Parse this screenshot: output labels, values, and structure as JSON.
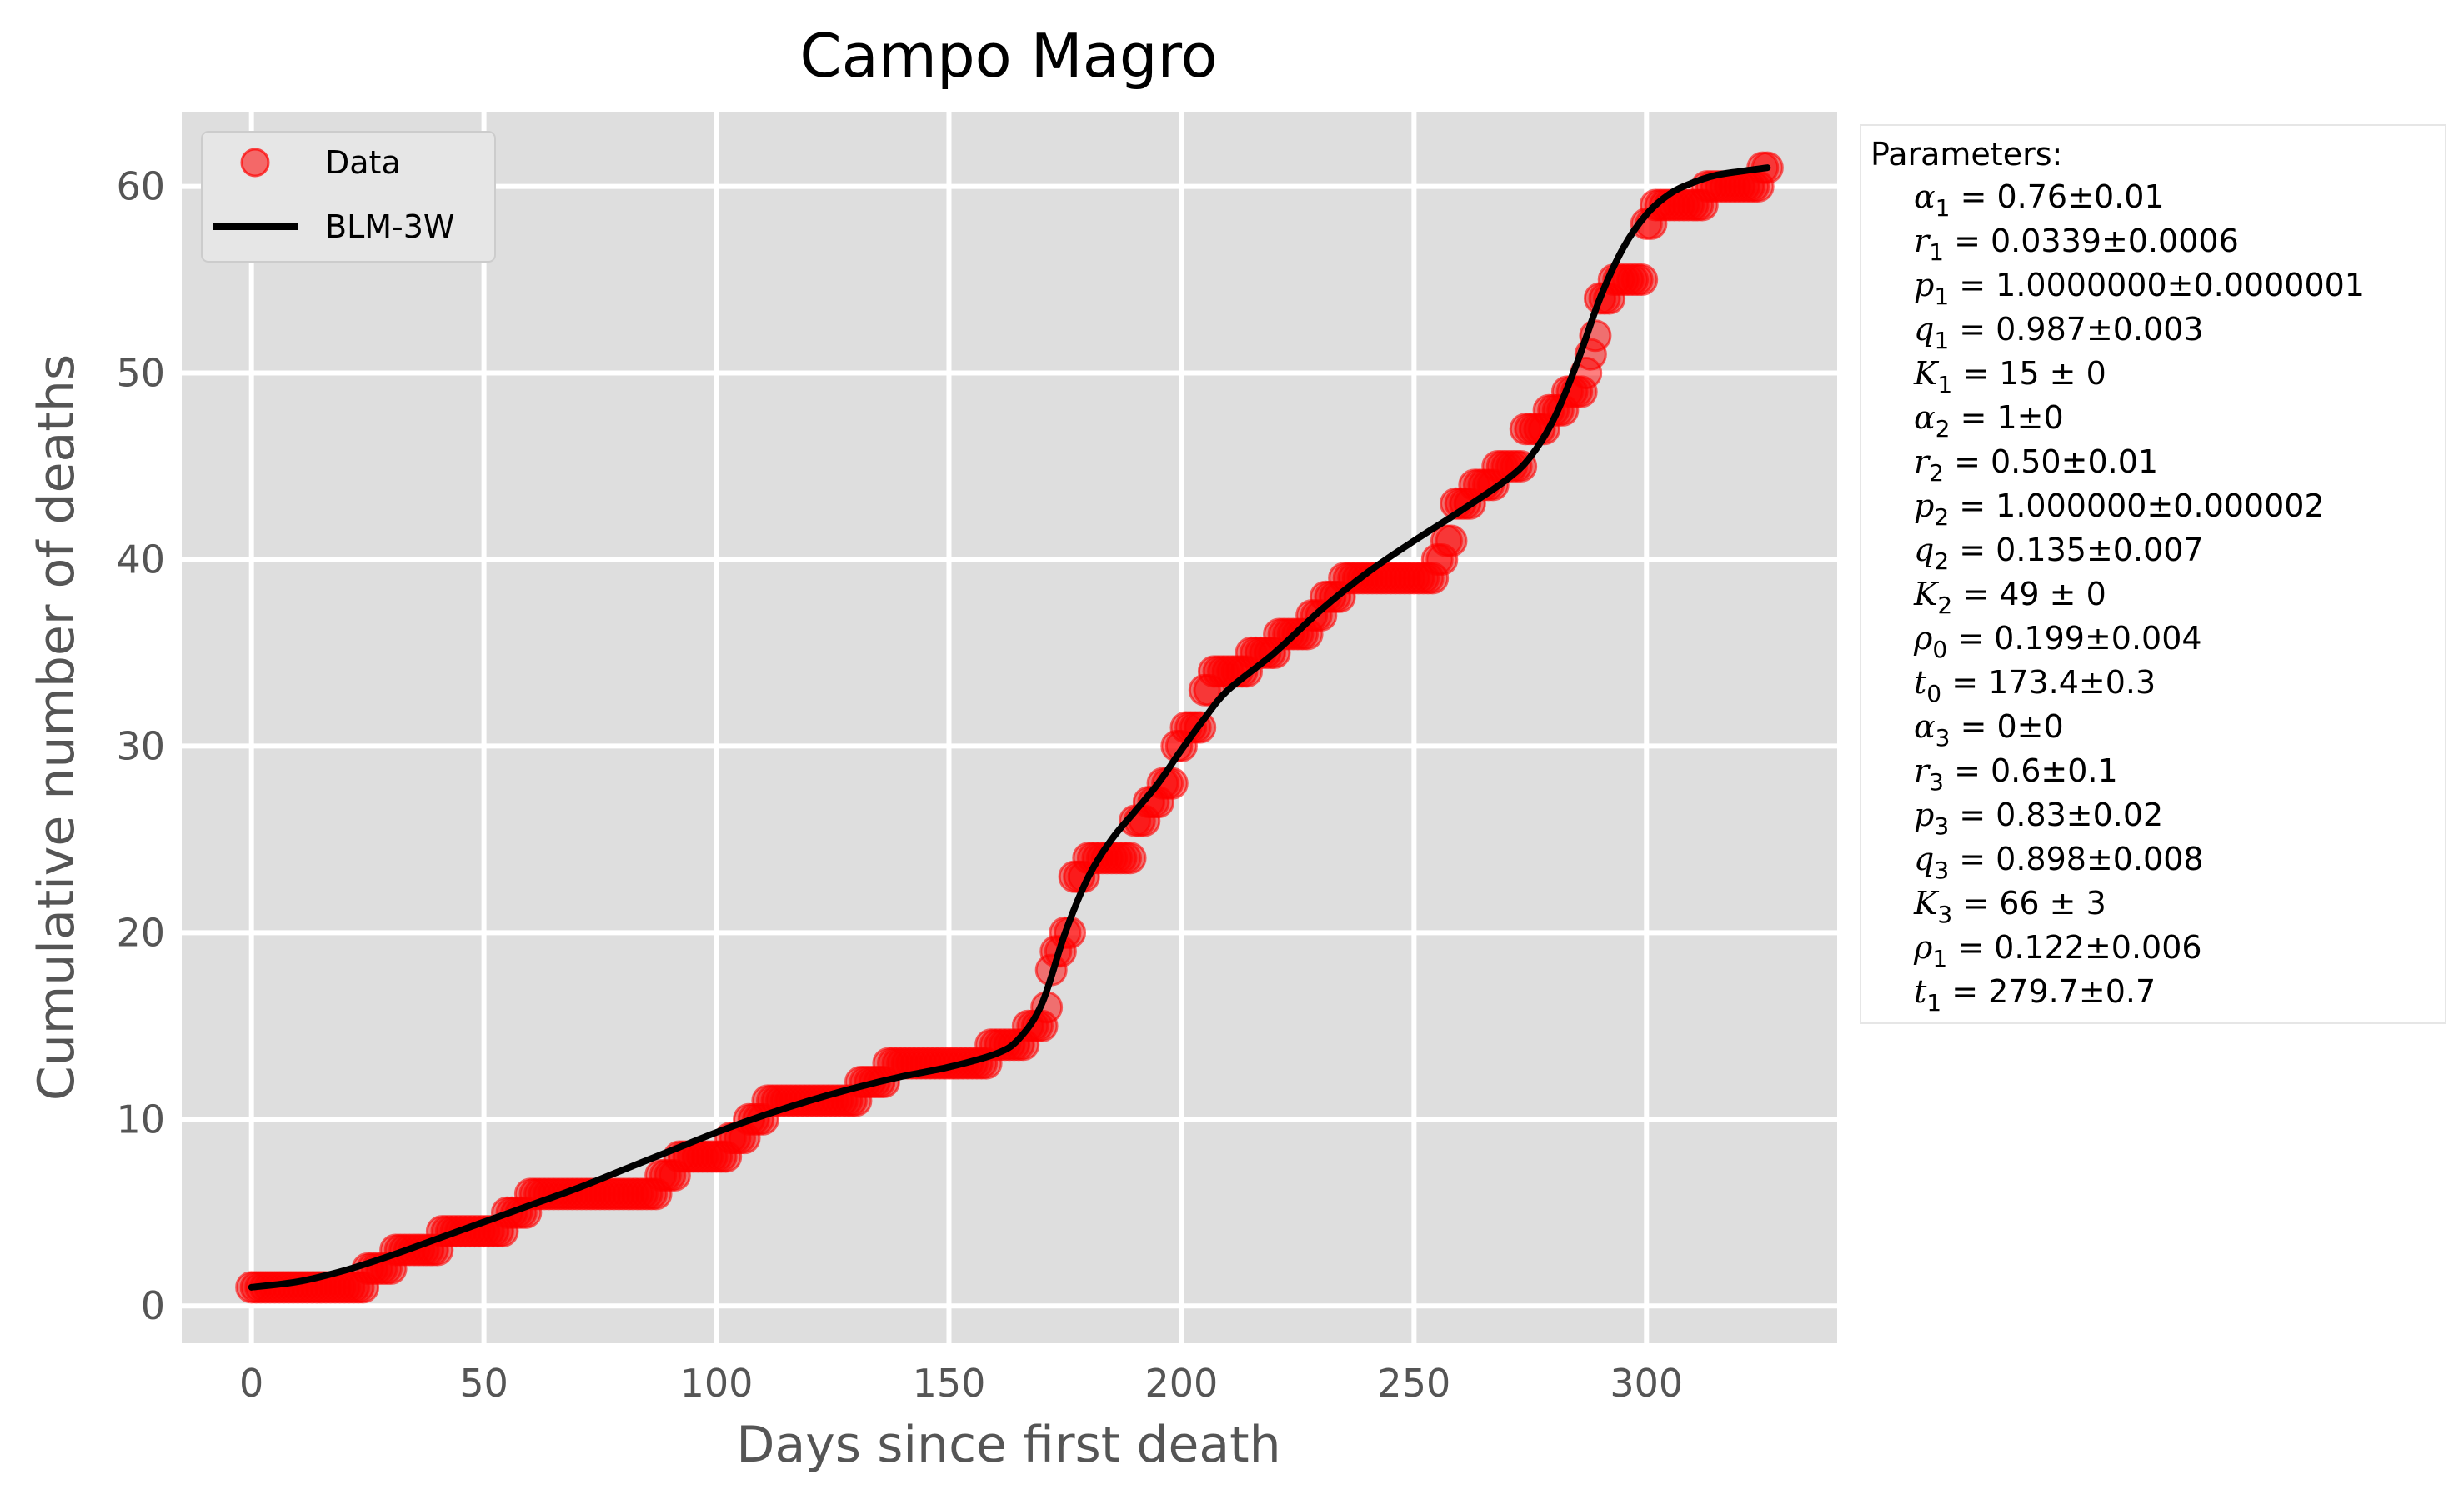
{
  "chart_data": {
    "type": "scatter",
    "title": "Campo Magro",
    "xlabel": "Days since first death",
    "ylabel": "Cumulative number of deaths",
    "xlim": [
      -15,
      341
    ],
    "ylim": [
      -2,
      64
    ],
    "xticks": [
      0,
      50,
      100,
      150,
      200,
      250,
      300
    ],
    "yticks": [
      0,
      10,
      20,
      30,
      40,
      50,
      60
    ],
    "xtick_labels": [
      "0",
      "50",
      "100",
      "150",
      "200",
      "250",
      "300"
    ],
    "ytick_labels": [
      "0",
      "10",
      "20",
      "30",
      "40",
      "50",
      "60"
    ],
    "grid": true,
    "legend": {
      "placement": "top-left",
      "entries": [
        {
          "label": "Data",
          "marker": "circle",
          "color": "#ff0000"
        },
        {
          "label": "BLM-3W",
          "marker": "line",
          "color": "#000000"
        }
      ]
    },
    "colors": {
      "background": "#dedede",
      "grid": "#ffffff",
      "data": "#ff0000",
      "fit": "#000000",
      "text": "#555555"
    },
    "data_series": {
      "name": "Data",
      "steps": [
        [
          0,
          1
        ],
        [
          25,
          2
        ],
        [
          31,
          3
        ],
        [
          41,
          4
        ],
        [
          55,
          5
        ],
        [
          60,
          6
        ],
        [
          88,
          7
        ],
        [
          92,
          8
        ],
        [
          103,
          9
        ],
        [
          107,
          10
        ],
        [
          111,
          11
        ],
        [
          131,
          12
        ],
        [
          137,
          13
        ],
        [
          159,
          14
        ],
        [
          167,
          15
        ],
        [
          171,
          16
        ],
        [
          172,
          18
        ],
        [
          173,
          19
        ],
        [
          175,
          20
        ],
        [
          177,
          23
        ],
        [
          180,
          24
        ],
        [
          190,
          26
        ],
        [
          193,
          27
        ],
        [
          196,
          28
        ],
        [
          199,
          30
        ],
        [
          201,
          31
        ],
        [
          205,
          33
        ],
        [
          207,
          34
        ],
        [
          215,
          35
        ],
        [
          221,
          36
        ],
        [
          228,
          37
        ],
        [
          231,
          38
        ],
        [
          235,
          39
        ],
        [
          255,
          40
        ],
        [
          257,
          41
        ],
        [
          259,
          43
        ],
        [
          263,
          44
        ],
        [
          268,
          45
        ],
        [
          274,
          47
        ],
        [
          279,
          48
        ],
        [
          283,
          49
        ],
        [
          287,
          50
        ],
        [
          288,
          51
        ],
        [
          289,
          52
        ],
        [
          290,
          54
        ],
        [
          293,
          55
        ],
        [
          300,
          58
        ],
        [
          302,
          59
        ],
        [
          313,
          60
        ],
        [
          325,
          61
        ]
      ],
      "x_end": 326
    },
    "fit_series": {
      "name": "BLM-3W",
      "x": [
        0,
        10,
        20,
        30,
        40,
        50,
        60,
        70,
        80,
        90,
        100,
        110,
        120,
        130,
        140,
        150,
        160,
        165,
        170,
        175,
        180,
        185,
        190,
        195,
        200,
        205,
        210,
        220,
        230,
        240,
        250,
        260,
        270,
        275,
        280,
        285,
        290,
        295,
        300,
        305,
        310,
        315,
        320,
        326
      ],
      "y": [
        1.0,
        1.3,
        1.9,
        2.7,
        3.6,
        4.5,
        5.4,
        6.3,
        7.3,
        8.3,
        9.3,
        10.2,
        11.0,
        11.7,
        12.3,
        12.8,
        13.5,
        14.3,
        16.2,
        20.0,
        23.0,
        25.0,
        26.5,
        28.0,
        29.8,
        31.5,
        33.0,
        35.0,
        37.3,
        39.3,
        41.0,
        42.6,
        44.3,
        45.5,
        47.5,
        50.5,
        54.0,
        56.7,
        58.5,
        59.6,
        60.2,
        60.6,
        60.8,
        61.0
      ]
    },
    "parameters_title": "Parameters:",
    "parameters": [
      {
        "sym": "α",
        "sub": "1",
        "rest": " = 0.76±0.01"
      },
      {
        "sym": "r",
        "sub": "1",
        "rest": " = 0.0339±0.0006"
      },
      {
        "sym": "p",
        "sub": "1",
        "rest": " = 1.0000000±0.0000001"
      },
      {
        "sym": "q",
        "sub": "1",
        "rest": " = 0.987±0.003"
      },
      {
        "sym": "K",
        "sub": "1",
        "rest": " = 15 ± 0"
      },
      {
        "sym": "α",
        "sub": "2",
        "rest": " = 1±0"
      },
      {
        "sym": "r",
        "sub": "2",
        "rest": " = 0.50±0.01"
      },
      {
        "sym": "p",
        "sub": "2",
        "rest": " = 1.000000±0.000002"
      },
      {
        "sym": "q",
        "sub": "2",
        "rest": " = 0.135±0.007"
      },
      {
        "sym": "K",
        "sub": "2",
        "rest": " = 49 ± 0"
      },
      {
        "sym": "ρ",
        "sub": "0",
        "rest": " = 0.199±0.004"
      },
      {
        "sym": "t",
        "sub": "0",
        "rest": " = 173.4±0.3"
      },
      {
        "sym": "α",
        "sub": "3",
        "rest": " = 0±0"
      },
      {
        "sym": "r",
        "sub": "3",
        "rest": " = 0.6±0.1"
      },
      {
        "sym": "p",
        "sub": "3",
        "rest": " = 0.83±0.02"
      },
      {
        "sym": "q",
        "sub": "3",
        "rest": " = 0.898±0.008"
      },
      {
        "sym": "K",
        "sub": "3",
        "rest": " = 66 ± 3"
      },
      {
        "sym": "ρ",
        "sub": "1",
        "rest": " = 0.122±0.006"
      },
      {
        "sym": "t",
        "sub": "1",
        "rest": " = 279.7±0.7"
      }
    ]
  }
}
